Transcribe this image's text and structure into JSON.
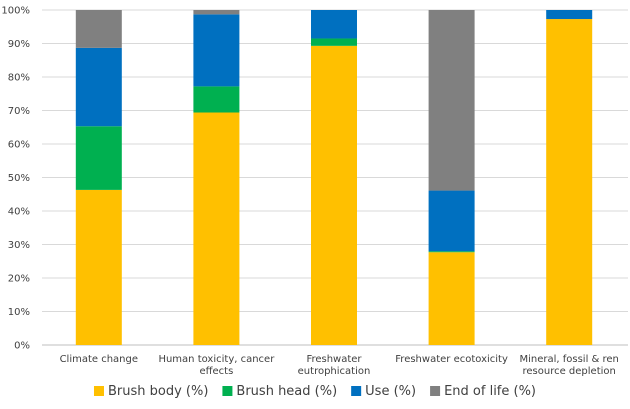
{
  "chart_data": {
    "type": "bar",
    "stacked": true,
    "categories": [
      [
        "Climate change"
      ],
      [
        "Human toxicity, cancer",
        "effects"
      ],
      [
        "Freshwater",
        "eutrophication"
      ],
      [
        "Freshwater ecotoxicity"
      ],
      [
        "Mineral, fossil & ren",
        "resource depletion"
      ]
    ],
    "series": [
      {
        "name": "Brush body (%)",
        "color": "#FFC000",
        "values": [
          46.3,
          69.4,
          89.3,
          27.7,
          97.3
        ]
      },
      {
        "name": "Brush head (%)",
        "color": "#00B050",
        "values": [
          19.0,
          7.8,
          2.2,
          0.3,
          0.0
        ]
      },
      {
        "name": "Use (%)",
        "color": "#0070C0",
        "values": [
          23.4,
          21.5,
          8.5,
          18.1,
          2.7
        ]
      },
      {
        "name": "End of life (%)",
        "color": "#808080",
        "values": [
          11.3,
          1.3,
          0.0,
          53.9,
          0.0
        ]
      }
    ],
    "yticks": [
      "0%",
      "10%",
      "20%",
      "30%",
      "40%",
      "50%",
      "60%",
      "70%",
      "80%",
      "90%",
      "100%"
    ],
    "ylim": [
      0,
      100
    ],
    "grid": true,
    "legend": "bottom"
  }
}
